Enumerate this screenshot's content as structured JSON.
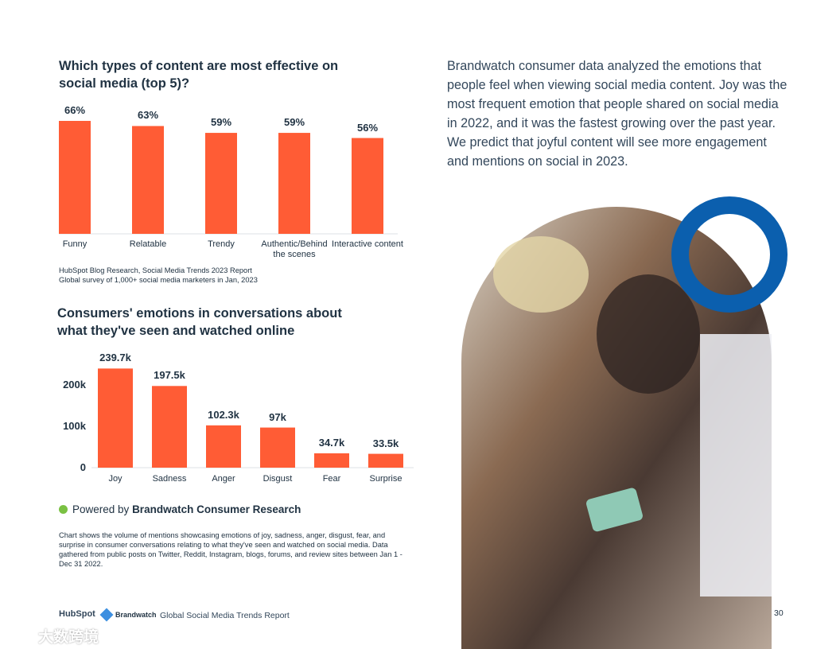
{
  "chart_data": [
    {
      "type": "bar",
      "title": "Which types of content are most effective on social media (top 5)?",
      "categories": [
        "Funny",
        "Relatable",
        "Trendy",
        "Authentic/Behind the scenes",
        "Interactive content"
      ],
      "values": [
        66,
        63,
        59,
        59,
        56
      ],
      "value_labels": [
        "66%",
        "63%",
        "59%",
        "59%",
        "56%"
      ],
      "color": "#ff5c35"
    },
    {
      "type": "bar",
      "title": "Consumers' emotions in conversations about what they've seen and watched online",
      "categories": [
        "Joy",
        "Sadness",
        "Anger",
        "Disgust",
        "Fear",
        "Surprise"
      ],
      "values": [
        239700,
        197500,
        102300,
        97000,
        34700,
        33500
      ],
      "value_labels": [
        "239.7k",
        "197.5k",
        "102.3k",
        "97k",
        "34.7k",
        "33.5k"
      ],
      "color": "#ff5c35",
      "ylim": [
        0,
        250000
      ],
      "yticks": [
        0,
        {
          "value": 100000,
          "label": "100k"
        },
        {
          "value": 200000,
          "label": "200k"
        }
      ]
    }
  ],
  "sources": [
    "HubSpot Blog Research, Social Media Trends 2023 Report",
    "Global survey of 1,000+ social media marketers in Jan, 2023"
  ],
  "legend": {
    "prefix": "Powered by",
    "name": "Brandwatch Consumer Research",
    "color": "#7ac143"
  },
  "footnote": "Chart shows the volume of mentions showcasing emotions of joy, sadness, anger, disgust, fear, and surprise in consumer conversations relating to what they've seen and watched on social media. Data gathered from public posts on Twitter, Reddit, Instagram, blogs, forums, and review sites between Jan 1 - Dec 31 2022.",
  "body_text": "Brandwatch consumer data analyzed the emotions that people feel when viewing social media content. Joy was the most frequent emotion that people shared on social media in 2022, and it was the fastest growing over the past year. We predict that joyful content will see more engagement and mentions on social in 2023.",
  "footer": {
    "hubspot": "HubSpot",
    "brandwatch": "Brandwatch",
    "report": "Global Social Media Trends Report",
    "page": "30"
  },
  "watermark": "大数跨境"
}
